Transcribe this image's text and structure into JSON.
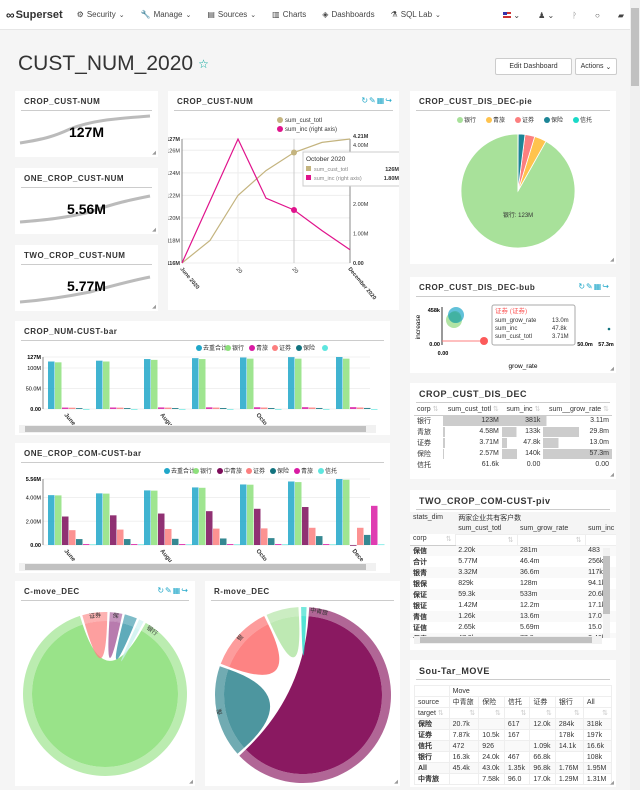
{
  "navbar": {
    "brand": "Superset",
    "items": [
      {
        "label": "Security",
        "icon": "cogs-icon",
        "dropdown": true
      },
      {
        "label": "Manage",
        "icon": "wrench-icon",
        "dropdown": true
      },
      {
        "label": "Sources",
        "icon": "database-icon",
        "dropdown": true
      },
      {
        "label": "Charts",
        "icon": "bar-chart-icon",
        "dropdown": false
      },
      {
        "label": "Dashboards",
        "icon": "dashboard-icon",
        "dropdown": false
      },
      {
        "label": "SQL Lab",
        "icon": "flask-icon",
        "dropdown": true
      }
    ],
    "right_icons": [
      "flag-us-icon",
      "user-icon",
      "version-icon",
      "github-icon",
      "book-icon"
    ]
  },
  "dashboard": {
    "title": "CUST_NUM_2020",
    "edit_button": "Edit Dashboard",
    "actions_button": "Actions"
  },
  "big_numbers": [
    {
      "title": "CROP_CUST-NUM",
      "value": "127M"
    },
    {
      "title": "ONE_CROP_CUST-NUM",
      "value": "5.56M"
    },
    {
      "title": "TWO_CROP_CUST-NUM",
      "value": "5.77M"
    }
  ],
  "panels": {
    "line_title": "CROP_CUST-NUM",
    "pie_title": "CROP_CUST_DIS_DEC-pie",
    "bubble_title": "CROP_CUST_DIS_DEC-bub",
    "bar1_title": "CROP_NUM-CUST-bar",
    "bar2_title": "ONE_CROP_COM-CUST-bar",
    "table_title": "CROP_CUST_DIS_DEC",
    "piv_title": "TWO_CROP_COM-CUST-piv",
    "chord1_title": "C-move_DEC",
    "chord2_title": "R-move_DEC",
    "move_title": "Sou-Tar_MOVE"
  },
  "colors": {
    "accent": "#00a699",
    "line1": "#c4b47f",
    "line2": "#e0138c",
    "green": "#a8e19a",
    "teal": "#20a7c9"
  },
  "chart_data": [
    {
      "type": "line",
      "title": "CROP_CUST-NUM",
      "x": [
        "June 2020",
        "July 2020",
        "August 2020",
        "September 2020",
        "October 2020",
        "November 2020",
        "December 2020"
      ],
      "xticks": [
        "June 2020",
        "20",
        "20",
        "December 2020"
      ],
      "series": [
        {
          "name": "sum_cust_totl",
          "axis": "left",
          "values": [
            116.0,
            118.0,
            122.0,
            124.2,
            125.8,
            126.7,
            127.0
          ]
        },
        {
          "name": "sum_inc (right axis)",
          "axis": "right",
          "values": [
            0.0,
            2.1,
            4.21,
            2.2,
            1.8,
            1.1,
            0.45
          ]
        }
      ],
      "yticks_left": [
        "116M",
        "118M",
        "120M",
        "122M",
        "124M",
        "126M",
        "127M"
      ],
      "yticks_right": [
        "0.00",
        "1.00M",
        "2.00M",
        "4.00M",
        "4.21M"
      ],
      "ylim_left": [
        116,
        127
      ],
      "ylim_right": [
        0,
        4.21
      ],
      "tooltip": {
        "title": "October 2020",
        "rows": [
          {
            "name": "sum_cust_totl",
            "value": "126M"
          },
          {
            "name": "sum_inc (right axis)",
            "value": "1.80M"
          }
        ]
      }
    },
    {
      "type": "pie",
      "title": "CROP_CUST_DIS_DEC-pie",
      "labels": [
        "银行",
        "青旅",
        "证券",
        "保险",
        "信托"
      ],
      "values": [
        123,
        4.58,
        3.71,
        2.57,
        0.0616
      ],
      "colors": [
        "#a8e19a",
        "#ffc34d",
        "#fc7f7f",
        "#1c8596",
        "#1ad9c7"
      ],
      "data_label": "银行: 123M"
    },
    {
      "type": "scatter",
      "title": "CROP_CUST_DIS_DEC-bub",
      "xlabel": "grow_rate",
      "ylabel": "increase",
      "xticks": [
        "0.00",
        "50.0m",
        "57.3m"
      ],
      "yticks": [
        "0.00",
        "458k"
      ],
      "tooltip": {
        "title": "证券 (证券)",
        "rows": [
          {
            "name": "sum_grow_rate",
            "value": "13.0m"
          },
          {
            "name": "sum_inc",
            "value": "47.8k"
          },
          {
            "name": "sum_cust_totl",
            "value": "3.71M"
          }
        ]
      }
    },
    {
      "type": "bar",
      "title": "CROP_NUM-CUST-bar",
      "legend": [
        "去重合计",
        "银行",
        "青旅",
        "证券",
        "保险",
        ""
      ],
      "colors": [
        "#20a7c9",
        "#8ee07c",
        "#d91aa3",
        "#fc7f7f",
        "#12737f",
        "#5ee6df"
      ],
      "categories": [
        "June",
        "July",
        "Aug",
        "Sep",
        "Oct",
        "Nov",
        "Dec"
      ],
      "xticks": [
        "June",
        "Augu",
        "Octo"
      ],
      "yticks": [
        "0.00",
        "50.0M",
        "100M",
        "127M"
      ],
      "ylim": [
        0,
        127
      ],
      "series": [
        {
          "name": "去重合计",
          "values": [
            116,
            118,
            122,
            124.2,
            125.8,
            126.7,
            127
          ]
        },
        {
          "name": "银行",
          "values": [
            114,
            116,
            120,
            122,
            123,
            123,
            123
          ]
        },
        {
          "name": "青旅",
          "values": [
            3.5,
            3.7,
            3.9,
            4.1,
            4.3,
            4.5,
            4.58
          ]
        },
        {
          "name": "证券",
          "values": [
            3.2,
            3.3,
            3.4,
            3.5,
            3.6,
            3.65,
            3.71
          ]
        },
        {
          "name": "保险",
          "values": [
            2.2,
            2.3,
            2.35,
            2.4,
            2.45,
            2.5,
            2.57
          ]
        },
        {
          "name": "信托",
          "values": [
            0.05,
            0.05,
            0.06,
            0.06,
            0.06,
            0.06,
            0.06
          ]
        }
      ]
    },
    {
      "type": "bar",
      "title": "ONE_CROP_COM-CUST-bar",
      "legend": [
        "去重合计",
        "银行",
        "中青旅",
        "证券",
        "保险",
        "青旅",
        "信托"
      ],
      "colors": [
        "#20a7c9",
        "#8ee07c",
        "#7d0d5a",
        "#fc7f7f",
        "#12737f",
        "#d91aa3",
        "#5ee6df"
      ],
      "categories": [
        "June",
        "July",
        "Aug",
        "Sep",
        "Oct",
        "Nov",
        "Dec"
      ],
      "xticks": [
        "June",
        "Augu",
        "Octo",
        "Dece"
      ],
      "yticks": [
        "0.00",
        "2.00M",
        "4.00M",
        "5.56M"
      ],
      "ylim": [
        0,
        5.56
      ],
      "series": [
        {
          "name": "去重合计",
          "values": [
            4.2,
            4.35,
            4.6,
            4.85,
            5.1,
            5.35,
            5.56
          ]
        },
        {
          "name": "银行",
          "values": [
            4.18,
            4.33,
            4.58,
            4.82,
            5.08,
            5.3,
            5.5
          ]
        },
        {
          "name": "中青旅",
          "values": [
            2.4,
            2.5,
            2.65,
            2.85,
            3.05,
            3.2,
            0.0
          ]
        },
        {
          "name": "证券",
          "values": [
            1.25,
            1.3,
            1.35,
            1.38,
            1.4,
            1.45,
            1.45
          ]
        },
        {
          "name": "保险",
          "values": [
            0.5,
            0.5,
            0.52,
            0.55,
            0.58,
            0.75,
            0.85
          ]
        },
        {
          "name": "青旅",
          "values": [
            0.08,
            0.08,
            0.08,
            0.08,
            0.08,
            0.08,
            3.3
          ]
        },
        {
          "name": "信托",
          "values": [
            0.06,
            0.06,
            0.06,
            0.06,
            0.06,
            0.06,
            0.06
          ]
        }
      ]
    },
    {
      "type": "table",
      "title": "CROP_CUST_DIS_DEC",
      "columns": [
        "corp",
        "sum_cust_totl",
        "sum_inc",
        "sum__grow_rate"
      ],
      "rows": [
        [
          "银行",
          "123M",
          "381k",
          "3.11m"
        ],
        [
          "青旅",
          "4.58M",
          "133k",
          "29.8m"
        ],
        [
          "证券",
          "3.71M",
          "47.8k",
          "13.0m"
        ],
        [
          "保险",
          "2.57M",
          "140k",
          "57.3m"
        ],
        [
          "信托",
          "61.6k",
          "0.00",
          "0.00"
        ]
      ],
      "bar_fractions": [
        [
          1.0,
          1.0,
          0.054
        ],
        [
          0.037,
          0.35,
          0.52
        ],
        [
          0.03,
          0.125,
          0.227
        ],
        [
          0.021,
          0.367,
          1.0
        ],
        [
          0.0005,
          0,
          0
        ]
      ]
    },
    {
      "type": "table",
      "title": "TWO_CROP_COM-CUST-piv",
      "header_row1": [
        "stats_dim",
        "两家企业共有客户数"
      ],
      "columns": [
        "sum_cust_totl",
        "sum_grow_rate",
        "sum_inc"
      ],
      "index_label": "corp",
      "rows": [
        [
          "保信",
          "2.20k",
          "281m",
          "483"
        ],
        [
          "合计",
          "5.77M",
          "46.4m",
          "256k"
        ],
        [
          "银青",
          "3.32M",
          "36.6m",
          "117k"
        ],
        [
          "银保",
          "829k",
          "128m",
          "94.1k"
        ],
        [
          "保证",
          "59.3k",
          "533m",
          "20.6k"
        ],
        [
          "银证",
          "1.42M",
          "12.2m",
          "17.1k"
        ],
        [
          "青信",
          "1.26k",
          "13.6m",
          "17.0"
        ],
        [
          "证信",
          "2.65k",
          "5.69m",
          "15.0"
        ],
        [
          "保青",
          "47.9k",
          "77.8m",
          "3.46k"
        ]
      ]
    },
    {
      "type": "table",
      "title": "Sou-Tar_MOVE",
      "group_header": "Move",
      "row_label": "source",
      "index_label": "target",
      "columns": [
        "中青旅",
        "保险",
        "信托",
        "证券",
        "银行",
        "All"
      ],
      "rows": [
        [
          "保险",
          "20.7k",
          "",
          "617",
          "12.0k",
          "284k",
          "318k"
        ],
        [
          "证券",
          "7.87k",
          "10.5k",
          "167",
          "",
          "178k",
          "197k"
        ],
        [
          "信托",
          "472",
          "926",
          "",
          "1.09k",
          "14.1k",
          "16.6k"
        ],
        [
          "银行",
          "16.3k",
          "24.0k",
          "467",
          "66.8k",
          "",
          "108k"
        ],
        [
          "All",
          "45.4k",
          "43.0k",
          "1.35k",
          "96.8k",
          "1.76M",
          "1.95M"
        ],
        [
          "中青旅",
          "",
          "7.58k",
          "96.0",
          "17.0k",
          "1.29M",
          "1.31M"
        ]
      ]
    },
    {
      "type": "pie",
      "title": "C-move_DEC",
      "labels": [
        "银行",
        "证券",
        "青旅",
        "保险",
        "信托"
      ],
      "arc_labels": [
        "银行",
        "证券",
        "保"
      ],
      "values": [
        88,
        5,
        2.5,
        2.5,
        1
      ],
      "colors": [
        "#8ee07c",
        "#fc7f7f",
        "#a04f93",
        "#2a8fa3",
        "#c7f0ee"
      ]
    },
    {
      "type": "pie",
      "title": "R-move_DEC",
      "labels": [
        "中青旅",
        "保险",
        "证券",
        "银行",
        "信托"
      ],
      "arc_labels": [
        "中青旅",
        "保",
        "银"
      ],
      "values": [
        62,
        17,
        12,
        6,
        1
      ],
      "colors": [
        "#7d0050",
        "#12737f",
        "#fc5a5a",
        "#a8e19a",
        "#1ad9c7"
      ]
    }
  ]
}
